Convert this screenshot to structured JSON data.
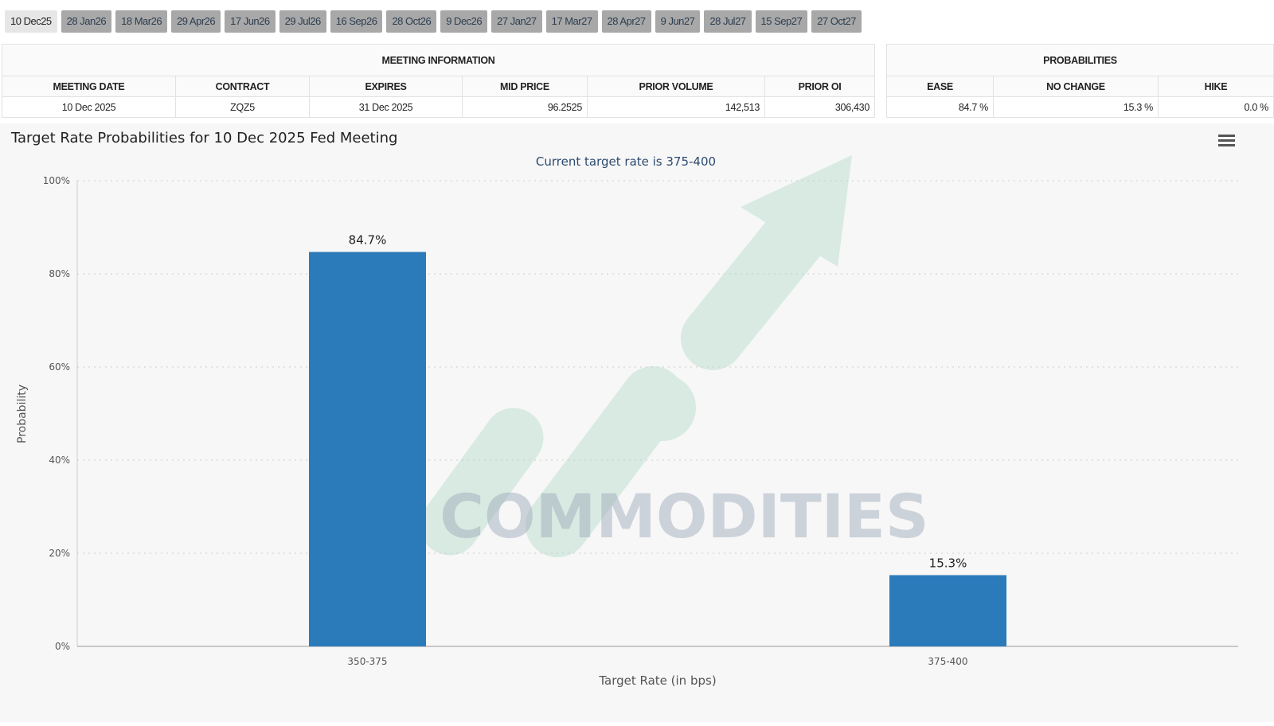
{
  "tabs": [
    "10 Dec25",
    "28 Jan26",
    "18 Mar26",
    "29 Apr26",
    "17 Jun26",
    "29 Jul26",
    "16 Sep26",
    "28 Oct26",
    "9 Dec26",
    "27 Jan27",
    "17 Mar27",
    "28 Apr27",
    "9 Jun27",
    "28 Jul27",
    "15 Sep27",
    "27 Oct27"
  ],
  "meeting_info": {
    "title": "MEETING INFORMATION",
    "headers": [
      "MEETING DATE",
      "CONTRACT",
      "EXPIRES",
      "MID PRICE",
      "PRIOR VOLUME",
      "PRIOR OI"
    ],
    "row": [
      "10 Dec 2025",
      "ZQZ5",
      "31 Dec 2025",
      "96.2525",
      "142,513",
      "306,430"
    ]
  },
  "probabilities": {
    "title": "PROBABILITIES",
    "headers": [
      "EASE",
      "NO CHANGE",
      "HIKE"
    ],
    "row": [
      "84.7 %",
      "15.3 %",
      "0.0 %"
    ]
  },
  "watermark": "VN COMMODITIES",
  "colors": {
    "bar": "#2b7bba",
    "subtitle": "#2d4a6e"
  },
  "chart_data": {
    "type": "bar",
    "title": "Target Rate Probabilities for 10 Dec 2025 Fed Meeting",
    "subtitle": "Current target rate is 375-400",
    "categories": [
      "350-375",
      "375-400"
    ],
    "values": [
      84.7,
      15.3
    ],
    "data_labels": [
      "84.7%",
      "15.3%"
    ],
    "xlabel": "Target Rate (in bps)",
    "ylabel": "Probability",
    "ylim": [
      0,
      100
    ],
    "yticks": [
      "0%",
      "20%",
      "40%",
      "60%",
      "80%",
      "100%"
    ],
    "grid": true
  }
}
